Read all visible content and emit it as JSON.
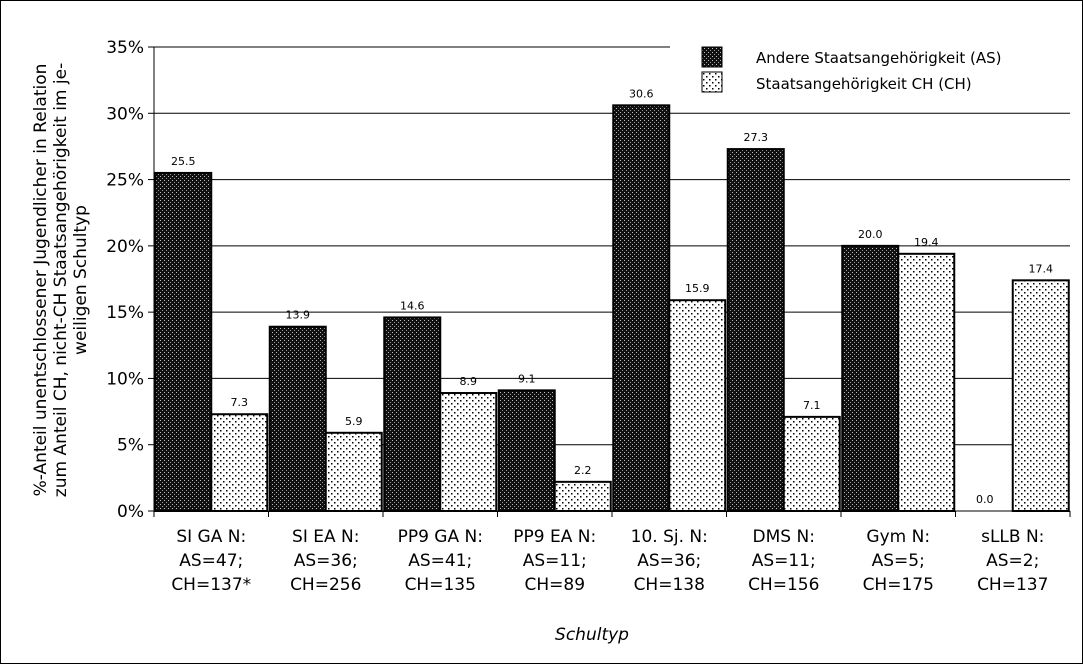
{
  "chart_data": {
    "type": "bar",
    "title": "",
    "xlabel": "Schultyp",
    "ylabel_lines": [
      "%-Anteil unentschlossener Jugendlicher in Relation",
      "zum Anteil CH, nicht-CH Staatsangehörigkeit im je-",
      "weiligen Schultyp"
    ],
    "ylim": [
      0,
      35
    ],
    "yticks": [
      0,
      5,
      10,
      15,
      20,
      25,
      30,
      35
    ],
    "ytick_suffix": "%",
    "grid": true,
    "legend_position": "top-right",
    "categories": [
      [
        "SI GA N:",
        "AS=47;",
        "CH=137*"
      ],
      [
        "SI EA N:",
        "AS=36;",
        "CH=256"
      ],
      [
        "PP9 GA N:",
        "AS=41;",
        "CH=135"
      ],
      [
        "PP9 EA N:",
        "AS=11;",
        "CH=89"
      ],
      [
        "10. Sj. N:",
        "AS=36;",
        "CH=138"
      ],
      [
        "DMS N:",
        "AS=11;",
        "CH=156"
      ],
      [
        "Gym N:",
        "AS=5;",
        "CH=175"
      ],
      [
        "sLLB N:",
        "AS=2;",
        "CH=137"
      ]
    ],
    "series": [
      {
        "name": "Andere Staatsangehörigkeit (AS)",
        "pattern": "dense-dark",
        "values": [
          25.5,
          13.9,
          14.6,
          9.1,
          30.6,
          27.3,
          20.0,
          0.0
        ],
        "labels": [
          "25.5",
          "13.9",
          "14.6",
          "9.1",
          "30.6",
          "27.3",
          "20.0",
          "0.0"
        ]
      },
      {
        "name": "Staatsangehörigkeit CH (CH)",
        "pattern": "sparse-dots",
        "values": [
          7.3,
          5.9,
          8.9,
          2.2,
          15.9,
          7.1,
          19.4,
          17.4
        ],
        "labels": [
          "7.3",
          "5.9",
          "8.9",
          "2.2",
          "15.9",
          "7.1",
          "19.4",
          "17.4"
        ]
      }
    ]
  }
}
